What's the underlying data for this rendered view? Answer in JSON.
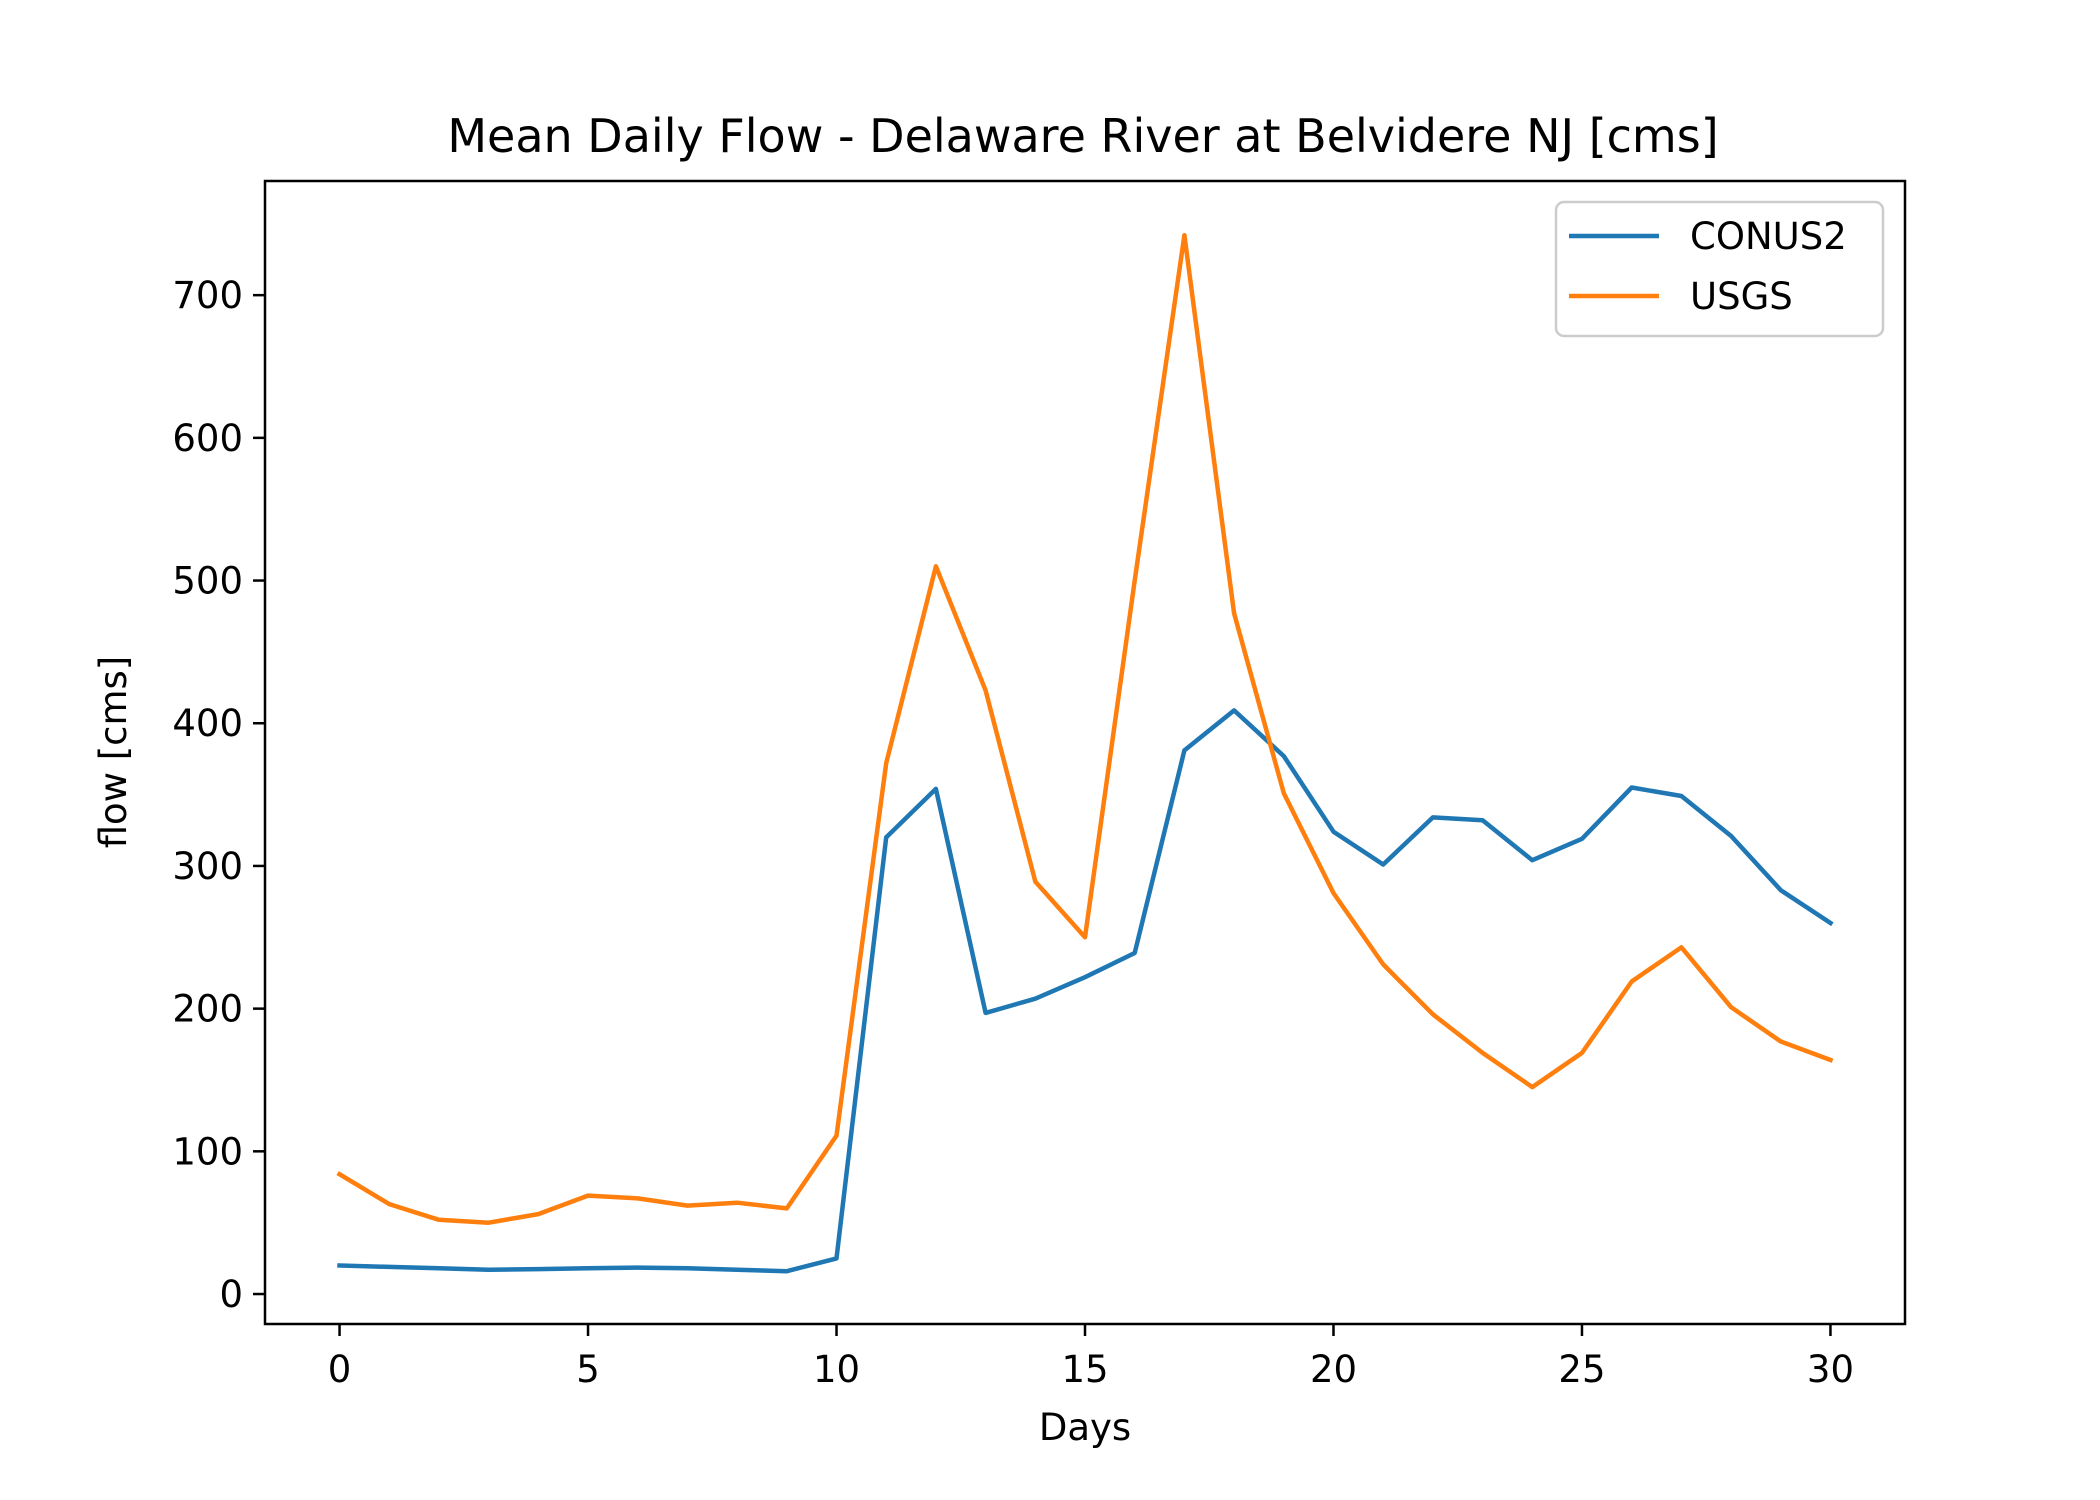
{
  "chart_data": {
    "type": "line",
    "title": "Mean Daily Flow - Delaware River at Belvidere NJ [cms]",
    "xlabel": "Days",
    "ylabel": "flow [cms]",
    "xlim": [
      -1.5,
      31.5
    ],
    "ylim": [
      -21,
      780
    ],
    "xticks": [
      0,
      5,
      10,
      15,
      20,
      25,
      30
    ],
    "yticks": [
      0,
      100,
      200,
      300,
      400,
      500,
      600,
      700
    ],
    "grid": false,
    "legend_position": "upper right",
    "x": [
      0,
      1,
      2,
      3,
      4,
      5,
      6,
      7,
      8,
      9,
      10,
      11,
      12,
      13,
      14,
      15,
      16,
      17,
      18,
      19,
      20,
      21,
      22,
      23,
      24,
      25,
      26,
      27,
      28,
      29,
      30
    ],
    "series": [
      {
        "name": "CONUS2",
        "color": "#1f77b4",
        "values": [
          20,
          19,
          18,
          17,
          17.5,
          18,
          18.5,
          18,
          17,
          16,
          25,
          320,
          354,
          197,
          207,
          222,
          239,
          381,
          409,
          377,
          324,
          301,
          334,
          332,
          304,
          319,
          355,
          349,
          321,
          283,
          260
        ]
      },
      {
        "name": "USGS",
        "color": "#ff7f0e",
        "values": [
          84,
          63,
          52,
          50,
          56,
          69,
          67,
          62,
          64,
          60,
          111,
          372,
          510,
          423,
          289,
          250,
          500,
          742,
          477,
          351,
          281,
          231,
          196,
          169,
          145,
          169,
          219,
          243,
          201,
          177,
          164
        ]
      }
    ]
  }
}
